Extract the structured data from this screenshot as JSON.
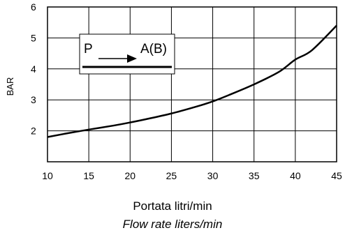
{
  "chart_data": {
    "type": "line",
    "title": "",
    "xlabel": "Portata litri/min",
    "xlabel_sub": "Flow rate liters/min",
    "ylabel": "BAR",
    "xlim": [
      10,
      45
    ],
    "ylim": [
      1,
      6
    ],
    "x_ticks": [
      10,
      15,
      20,
      25,
      30,
      35,
      40,
      45
    ],
    "y_ticks": [
      2,
      3,
      4,
      5,
      6
    ],
    "grid": true,
    "legend": {
      "placement": "top-left",
      "from_label": "P",
      "to_label": "A(B)"
    },
    "series": [
      {
        "x": [
          10,
          12,
          15,
          18,
          20,
          22,
          25,
          28,
          30,
          32,
          35,
          38,
          40,
          42,
          45
        ],
        "y": [
          1.8,
          1.9,
          2.04,
          2.17,
          2.27,
          2.38,
          2.56,
          2.78,
          2.95,
          3.16,
          3.5,
          3.9,
          4.3,
          4.6,
          5.4
        ]
      }
    ]
  }
}
